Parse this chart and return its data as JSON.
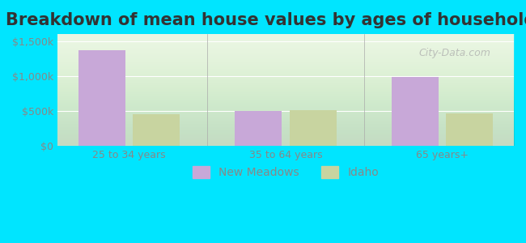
{
  "title": "Breakdown of mean house values by ages of householders",
  "categories": [
    "25 to 34 years",
    "35 to 64 years",
    "65 years+"
  ],
  "new_meadows_values": [
    1375000,
    500000,
    987500
  ],
  "idaho_values": [
    450000,
    512500,
    462500
  ],
  "bar_color_nm": "#c8a8d8",
  "bar_color_id": "#c8d4a0",
  "background_outer": "#00e5ff",
  "background_inner": "#e8f5e0",
  "ylim": [
    0,
    1600000
  ],
  "yticks": [
    0,
    500000,
    1000000,
    1500000
  ],
  "ytick_labels": [
    "$0",
    "$500k",
    "$1,000k",
    "$1,500k"
  ],
  "legend_labels": [
    "New Meadows",
    "Idaho"
  ],
  "watermark": "City-Data.com",
  "title_fontsize": 15,
  "tick_fontsize": 9,
  "legend_fontsize": 10
}
